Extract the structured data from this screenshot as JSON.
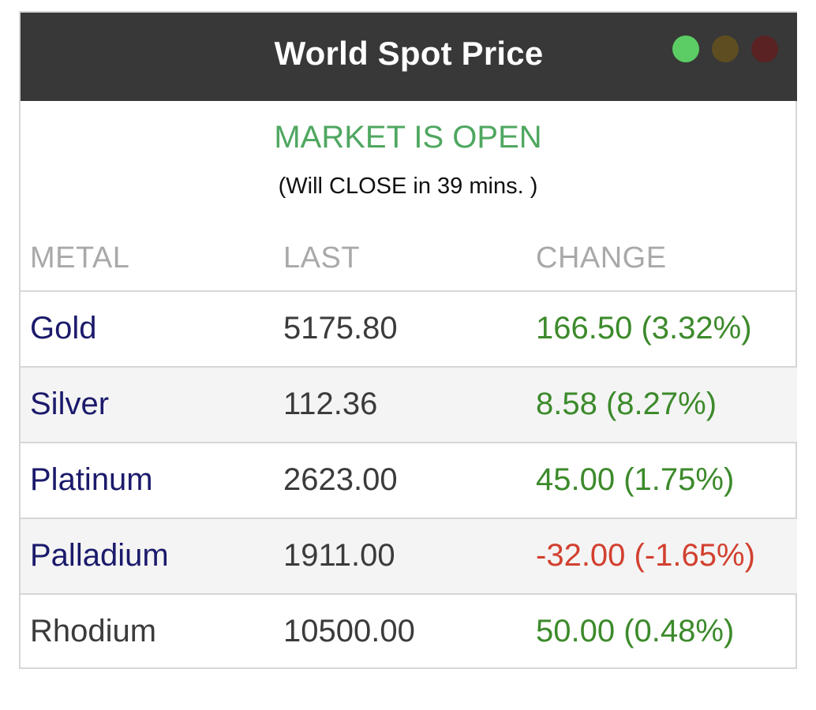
{
  "widget": {
    "title": "World Spot Price",
    "indicators": [
      {
        "name": "green",
        "color": "#5ccd64"
      },
      {
        "name": "amber",
        "color": "#5e4d21"
      },
      {
        "name": "red",
        "color": "#5a2222"
      }
    ],
    "market_status": "MARKET IS OPEN",
    "countdown": "(Will CLOSE in 39 mins. )",
    "columns": {
      "metal": "METAL",
      "last": "LAST",
      "change": "CHANGE"
    },
    "rows": [
      {
        "metal": "Gold",
        "last": "5175.80",
        "change": "166.50 (3.32%)",
        "direction": "up"
      },
      {
        "metal": "Silver",
        "last": "112.36",
        "change": "8.58 (8.27%)",
        "direction": "up"
      },
      {
        "metal": "Platinum",
        "last": "2623.00",
        "change": "45.00 (1.75%)",
        "direction": "up"
      },
      {
        "metal": "Palladium",
        "last": "1911.00",
        "change": "-32.00 (-1.65%)",
        "direction": "down"
      },
      {
        "metal": "Rhodium",
        "last": "10500.00",
        "change": "50.00 (0.48%)",
        "direction": "up"
      }
    ],
    "colors": {
      "open_status": "#4fa760",
      "positive_change": "#3c8a2b",
      "negative_change": "#d2402f",
      "metal_link": "#1b1a6b",
      "header_bg": "#383838"
    }
  }
}
